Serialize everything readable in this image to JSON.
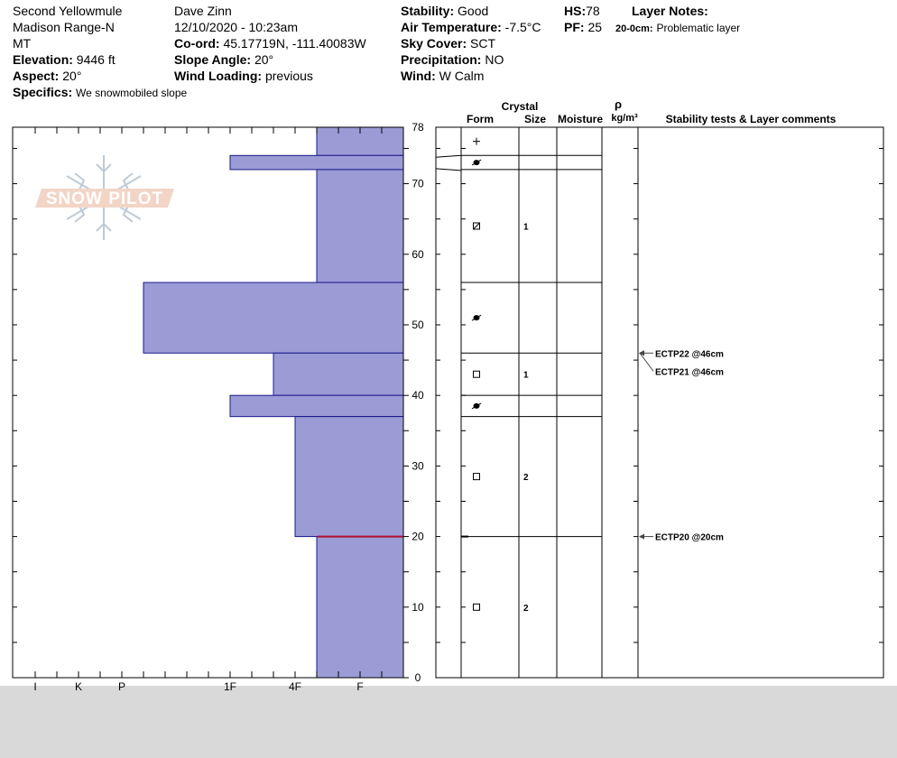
{
  "header": {
    "location": "Second Yellowmule",
    "range": "Madison Range-N",
    "state": "MT",
    "elevation_label": "Elevation:",
    "elevation_value": "9446 ft",
    "aspect_label": "Aspect:",
    "aspect_value": "20°",
    "specifics_label": "Specifics:",
    "specifics_value": "We snowmobiled slope",
    "observer": "Dave Zinn",
    "datetime": "12/10/2020 - 10:23am",
    "coord_label": "Co-ord:",
    "coord_value": "45.17719N, -111.40083W",
    "slope_label": "Slope Angle:",
    "slope_value": "20°",
    "wind_loading_label": "Wind Loading:",
    "wind_loading_value": "previous",
    "stability_label": "Stability:",
    "stability_value": "Good",
    "air_temp_label": "Air Temperature:",
    "air_temp_value": "-7.5°C",
    "sky_label": "Sky Cover:",
    "sky_value": "SCT",
    "precip_label": "Precipitation:",
    "precip_value": "NO",
    "wind_label": "Wind:",
    "wind_value": "W Calm",
    "hs_label": "HS:",
    "hs_value": "78",
    "pf_label": "PF:",
    "pf_value": "25",
    "layer_notes_label": "Layer Notes:",
    "layer_note_range": "20-0cm:",
    "layer_note_text": "Problematic layer"
  },
  "logo_text": "SNOW PILOT",
  "columns": {
    "crystal": "Crystal",
    "form": "Form",
    "size": "Size",
    "moisture": "Moisture",
    "rho": "ρ",
    "density_unit": "kg/m³",
    "stability": "Stability tests & Layer comments"
  },
  "chart_data": {
    "type": "bar",
    "title": "",
    "xlabel": "",
    "ylabel": "",
    "ylim": [
      0,
      78
    ],
    "hardness_scale": [
      "I",
      "K",
      "P",
      "1F",
      "4F",
      "F"
    ],
    "y_ticks": [
      0,
      10,
      20,
      30,
      40,
      50,
      60,
      70,
      78
    ],
    "layers": [
      {
        "top": 78,
        "bottom": 74,
        "hardness": "4F-"
      },
      {
        "top": 74,
        "bottom": 72,
        "hardness": "1F"
      },
      {
        "top": 72,
        "bottom": 56,
        "hardness": "4F-"
      },
      {
        "top": 56,
        "bottom": 46,
        "hardness": "P-"
      },
      {
        "top": 46,
        "bottom": 40,
        "hardness": "1F-"
      },
      {
        "top": 40,
        "bottom": 37,
        "hardness": "1F"
      },
      {
        "top": 37,
        "bottom": 20,
        "hardness": "4F"
      },
      {
        "top": 20,
        "bottom": 0,
        "hardness": "4F-"
      }
    ],
    "layer_details": [
      {
        "top": 78,
        "bottom": 74,
        "form": "+",
        "size": ""
      },
      {
        "top": 74,
        "bottom": 72,
        "form": "●",
        "size": ""
      },
      {
        "top": 72,
        "bottom": 56,
        "form": "⊠",
        "size": "1"
      },
      {
        "top": 56,
        "bottom": 46,
        "form": "●",
        "size": ""
      },
      {
        "top": 46,
        "bottom": 40,
        "form": "□",
        "size": "1"
      },
      {
        "top": 40,
        "bottom": 37,
        "form": "●",
        "size": ""
      },
      {
        "top": 37,
        "bottom": 20,
        "form": "□",
        "size": "2"
      },
      {
        "top": 20,
        "bottom": 0,
        "form": "□",
        "size": "2"
      }
    ],
    "tests": [
      {
        "depth": 46,
        "label": "ECTP22 @46cm"
      },
      {
        "depth": 46,
        "label": "ECTP21 @46cm"
      },
      {
        "depth": 20,
        "label": "ECTP20 @20cm"
      }
    ],
    "colors": {
      "fill": "#9b9bd6",
      "stroke": "#1a1a8c",
      "weak_layer": "#b01030"
    }
  }
}
